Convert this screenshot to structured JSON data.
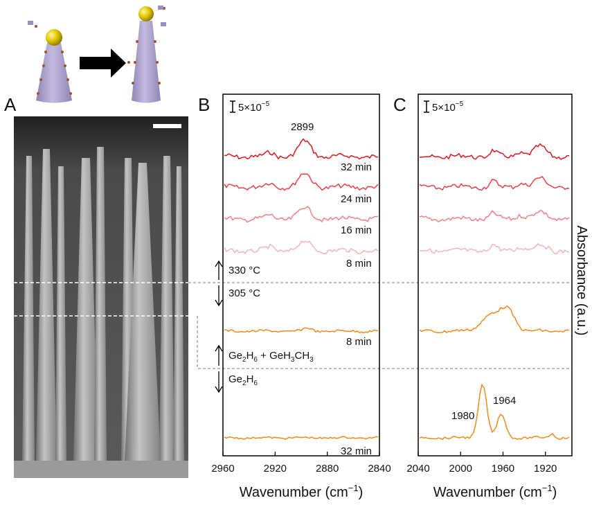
{
  "figure": {
    "panel_labels": [
      "A",
      "B",
      "C"
    ],
    "panels": [
      {
        "xlim": [
          2960,
          2840
        ],
        "xticks": [
          2960,
          2920,
          2880,
          2840
        ],
        "xlabel": {
          "text": "Wavenumber (cm",
          "sup": "−1",
          "close": ")"
        },
        "scale_bar": {
          "text": "5×10",
          "sup": "−5"
        },
        "peak_labels": [
          "2899"
        ],
        "trace_labels": [
          "32 min",
          "24 min",
          "16 min",
          "8 min",
          "8 min",
          "32 min"
        ]
      },
      {
        "xlim": [
          2040,
          1895
        ],
        "xticks": [
          2040,
          2000,
          1960,
          1920
        ],
        "xlabel": {
          "text": "Wavenumber (cm",
          "sup": "−1",
          "close": ")"
        },
        "scale_bar": {
          "text": "5×10",
          "sup": "−5"
        },
        "peak_labels": [
          "1980",
          "1964"
        ],
        "ylabel": "Absorbance (a.u.)"
      }
    ],
    "conditions": {
      "t_high": "330 °C",
      "t_low": "305 °C",
      "precursor_mix": [
        [
          "Ge",
          "2",
          "H",
          "6",
          " + GeH",
          "3",
          "CH",
          "3"
        ]
      ],
      "precursor": [
        [
          "Ge",
          "2",
          "H",
          "6"
        ]
      ]
    }
  }
}
